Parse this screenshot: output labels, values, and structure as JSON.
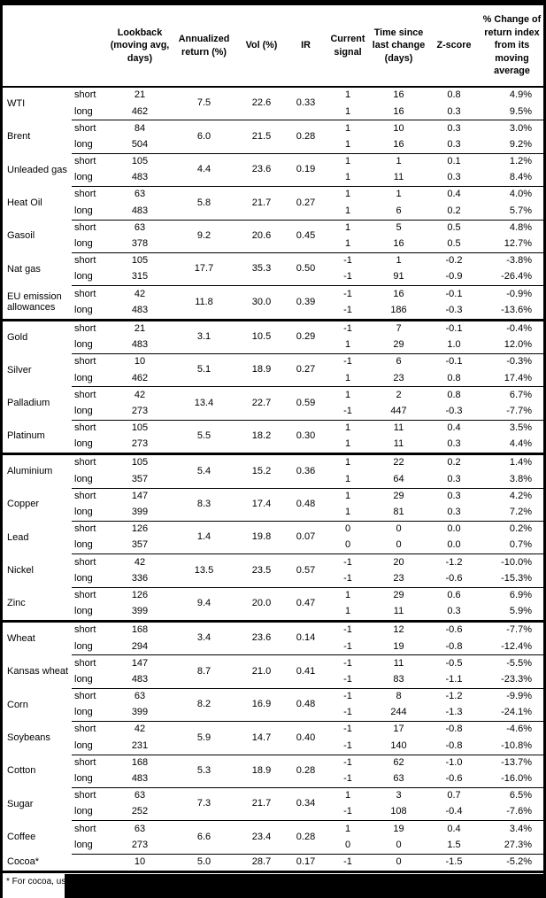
{
  "table": {
    "header": {
      "columns": [
        {
          "label": ""
        },
        {
          "label": ""
        },
        {
          "label": "Lookback (moving avg, days)"
        },
        {
          "label": "Annualized return (%)"
        },
        {
          "label": "Vol (%)"
        },
        {
          "label": "IR"
        },
        {
          "label": "Current signal"
        },
        {
          "label": "Time since last change (days)"
        },
        {
          "label": "Z-score"
        },
        {
          "label": "% Change of return index from its moving average"
        }
      ]
    },
    "sections": [
      {
        "name": "energy",
        "commodities": [
          {
            "name": "WTI",
            "annualized_return": "7.5",
            "vol": "22.6",
            "ir": "0.33",
            "legs": [
              {
                "label": "short",
                "lookback": "21",
                "signal": "1",
                "time_since": "16",
                "z_score": "0.8",
                "pct_change": "4.9%"
              },
              {
                "label": "long",
                "lookback": "462",
                "signal": "1",
                "time_since": "16",
                "z_score": "0.3",
                "pct_change": "9.5%"
              }
            ]
          },
          {
            "name": "Brent",
            "annualized_return": "6.0",
            "vol": "21.5",
            "ir": "0.28",
            "legs": [
              {
                "label": "short",
                "lookback": "84",
                "signal": "1",
                "time_since": "10",
                "z_score": "0.3",
                "pct_change": "3.0%"
              },
              {
                "label": "long",
                "lookback": "504",
                "signal": "1",
                "time_since": "16",
                "z_score": "0.3",
                "pct_change": "9.2%"
              }
            ]
          },
          {
            "name": "Unleaded gas",
            "annualized_return": "4.4",
            "vol": "23.6",
            "ir": "0.19",
            "legs": [
              {
                "label": "short",
                "lookback": "105",
                "signal": "1",
                "time_since": "1",
                "z_score": "0.1",
                "pct_change": "1.2%"
              },
              {
                "label": "long",
                "lookback": "483",
                "signal": "1",
                "time_since": "11",
                "z_score": "0.3",
                "pct_change": "8.4%"
              }
            ]
          },
          {
            "name": "Heat Oil",
            "annualized_return": "5.8",
            "vol": "21.7",
            "ir": "0.27",
            "legs": [
              {
                "label": "short",
                "lookback": "63",
                "signal": "1",
                "time_since": "1",
                "z_score": "0.4",
                "pct_change": "4.0%"
              },
              {
                "label": "long",
                "lookback": "483",
                "signal": "1",
                "time_since": "6",
                "z_score": "0.2",
                "pct_change": "5.7%"
              }
            ]
          },
          {
            "name": "Gasoil",
            "annualized_return": "9.2",
            "vol": "20.6",
            "ir": "0.45",
            "legs": [
              {
                "label": "short",
                "lookback": "63",
                "signal": "1",
                "time_since": "5",
                "z_score": "0.5",
                "pct_change": "4.8%"
              },
              {
                "label": "long",
                "lookback": "378",
                "signal": "1",
                "time_since": "16",
                "z_score": "0.5",
                "pct_change": "12.7%"
              }
            ]
          },
          {
            "name": "Nat gas",
            "annualized_return": "17.7",
            "vol": "35.3",
            "ir": "0.50",
            "legs": [
              {
                "label": "short",
                "lookback": "105",
                "signal": "-1",
                "time_since": "1",
                "z_score": "-0.2",
                "pct_change": "-3.8%"
              },
              {
                "label": "long",
                "lookback": "315",
                "signal": "-1",
                "time_since": "91",
                "z_score": "-0.9",
                "pct_change": "-26.4%"
              }
            ]
          },
          {
            "name": "EU emission allowances",
            "annualized_return": "11.8",
            "vol": "30.0",
            "ir": "0.39",
            "legs": [
              {
                "label": "short",
                "lookback": "42",
                "signal": "-1",
                "time_since": "16",
                "z_score": "-0.1",
                "pct_change": "-0.9%"
              },
              {
                "label": "long",
                "lookback": "483",
                "signal": "-1",
                "time_since": "186",
                "z_score": "-0.3",
                "pct_change": "-13.6%"
              }
            ]
          }
        ]
      },
      {
        "name": "precious-metals",
        "commodities": [
          {
            "name": "Gold",
            "annualized_return": "3.1",
            "vol": "10.5",
            "ir": "0.29",
            "legs": [
              {
                "label": "short",
                "lookback": "21",
                "signal": "-1",
                "time_since": "7",
                "z_score": "-0.1",
                "pct_change": "-0.4%"
              },
              {
                "label": "long",
                "lookback": "483",
                "signal": "1",
                "time_since": "29",
                "z_score": "1.0",
                "pct_change": "12.0%"
              }
            ]
          },
          {
            "name": "Silver",
            "annualized_return": "5.1",
            "vol": "18.9",
            "ir": "0.27",
            "legs": [
              {
                "label": "short",
                "lookback": "10",
                "signal": "-1",
                "time_since": "6",
                "z_score": "-0.1",
                "pct_change": "-0.3%"
              },
              {
                "label": "long",
                "lookback": "462",
                "signal": "1",
                "time_since": "23",
                "z_score": "0.8",
                "pct_change": "17.4%"
              }
            ]
          },
          {
            "name": "Palladium",
            "annualized_return": "13.4",
            "vol": "22.7",
            "ir": "0.59",
            "legs": [
              {
                "label": "short",
                "lookback": "42",
                "signal": "1",
                "time_since": "2",
                "z_score": "0.8",
                "pct_change": "6.7%"
              },
              {
                "label": "long",
                "lookback": "273",
                "signal": "-1",
                "time_since": "447",
                "z_score": "-0.3",
                "pct_change": "-7.7%"
              }
            ]
          },
          {
            "name": "Platinum",
            "annualized_return": "5.5",
            "vol": "18.2",
            "ir": "0.30",
            "legs": [
              {
                "label": "short",
                "lookback": "105",
                "signal": "1",
                "time_since": "11",
                "z_score": "0.4",
                "pct_change": "3.5%"
              },
              {
                "label": "long",
                "lookback": "273",
                "signal": "1",
                "time_since": "11",
                "z_score": "0.3",
                "pct_change": "4.4%"
              }
            ]
          }
        ]
      },
      {
        "name": "base-metals",
        "commodities": [
          {
            "name": "Aluminium",
            "annualized_return": "5.4",
            "vol": "15.2",
            "ir": "0.36",
            "legs": [
              {
                "label": "short",
                "lookback": "105",
                "signal": "1",
                "time_since": "22",
                "z_score": "0.2",
                "pct_change": "1.4%"
              },
              {
                "label": "long",
                "lookback": "357",
                "signal": "1",
                "time_since": "64",
                "z_score": "0.3",
                "pct_change": "3.8%"
              }
            ]
          },
          {
            "name": "Copper",
            "annualized_return": "8.3",
            "vol": "17.4",
            "ir": "0.48",
            "legs": [
              {
                "label": "short",
                "lookback": "147",
                "signal": "1",
                "time_since": "29",
                "z_score": "0.3",
                "pct_change": "4.2%"
              },
              {
                "label": "long",
                "lookback": "399",
                "signal": "1",
                "time_since": "81",
                "z_score": "0.3",
                "pct_change": "7.2%"
              }
            ]
          },
          {
            "name": "Lead",
            "annualized_return": "1.4",
            "vol": "19.8",
            "ir": "0.07",
            "legs": [
              {
                "label": "short",
                "lookback": "126",
                "signal": "0",
                "time_since": "0",
                "z_score": "0.0",
                "pct_change": "0.2%"
              },
              {
                "label": "long",
                "lookback": "357",
                "signal": "0",
                "time_since": "0",
                "z_score": "0.0",
                "pct_change": "0.7%"
              }
            ]
          },
          {
            "name": "Nickel",
            "annualized_return": "13.5",
            "vol": "23.5",
            "ir": "0.57",
            "legs": [
              {
                "label": "short",
                "lookback": "42",
                "signal": "-1",
                "time_since": "20",
                "z_score": "-1.2",
                "pct_change": "-10.0%"
              },
              {
                "label": "long",
                "lookback": "336",
                "signal": "-1",
                "time_since": "23",
                "z_score": "-0.6",
                "pct_change": "-15.3%"
              }
            ]
          },
          {
            "name": "Zinc",
            "annualized_return": "9.4",
            "vol": "20.0",
            "ir": "0.47",
            "legs": [
              {
                "label": "short",
                "lookback": "126",
                "signal": "1",
                "time_since": "29",
                "z_score": "0.6",
                "pct_change": "6.9%"
              },
              {
                "label": "long",
                "lookback": "399",
                "signal": "1",
                "time_since": "11",
                "z_score": "0.3",
                "pct_change": "5.9%"
              }
            ]
          }
        ]
      },
      {
        "name": "agriculture",
        "commodities": [
          {
            "name": "Wheat",
            "annualized_return": "3.4",
            "vol": "23.6",
            "ir": "0.14",
            "legs": [
              {
                "label": "short",
                "lookback": "168",
                "signal": "-1",
                "time_since": "12",
                "z_score": "-0.6",
                "pct_change": "-7.7%"
              },
              {
                "label": "long",
                "lookback": "294",
                "signal": "-1",
                "time_since": "19",
                "z_score": "-0.8",
                "pct_change": "-12.4%"
              }
            ]
          },
          {
            "name": "Kansas wheat",
            "annualized_return": "8.7",
            "vol": "21.0",
            "ir": "0.41",
            "legs": [
              {
                "label": "short",
                "lookback": "147",
                "signal": "-1",
                "time_since": "11",
                "z_score": "-0.5",
                "pct_change": "-5.5%"
              },
              {
                "label": "long",
                "lookback": "483",
                "signal": "-1",
                "time_since": "83",
                "z_score": "-1.1",
                "pct_change": "-23.3%"
              }
            ]
          },
          {
            "name": "Corn",
            "annualized_return": "8.2",
            "vol": "16.9",
            "ir": "0.48",
            "legs": [
              {
                "label": "short",
                "lookback": "63",
                "signal": "-1",
                "time_since": "8",
                "z_score": "-1.2",
                "pct_change": "-9.9%"
              },
              {
                "label": "long",
                "lookback": "399",
                "signal": "-1",
                "time_since": "244",
                "z_score": "-1.3",
                "pct_change": "-24.1%"
              }
            ]
          },
          {
            "name": "Soybeans",
            "annualized_return": "5.9",
            "vol": "14.7",
            "ir": "0.40",
            "legs": [
              {
                "label": "short",
                "lookback": "42",
                "signal": "-1",
                "time_since": "17",
                "z_score": "-0.8",
                "pct_change": "-4.6%"
              },
              {
                "label": "long",
                "lookback": "231",
                "signal": "-1",
                "time_since": "140",
                "z_score": "-0.8",
                "pct_change": "-10.8%"
              }
            ]
          },
          {
            "name": "Cotton",
            "annualized_return": "5.3",
            "vol": "18.9",
            "ir": "0.28",
            "legs": [
              {
                "label": "short",
                "lookback": "168",
                "signal": "-1",
                "time_since": "62",
                "z_score": "-1.0",
                "pct_change": "-13.7%"
              },
              {
                "label": "long",
                "lookback": "483",
                "signal": "-1",
                "time_since": "63",
                "z_score": "-0.6",
                "pct_change": "-16.0%"
              }
            ]
          },
          {
            "name": "Sugar",
            "annualized_return": "7.3",
            "vol": "21.7",
            "ir": "0.34",
            "legs": [
              {
                "label": "short",
                "lookback": "63",
                "signal": "1",
                "time_since": "3",
                "z_score": "0.7",
                "pct_change": "6.5%"
              },
              {
                "label": "long",
                "lookback": "252",
                "signal": "-1",
                "time_since": "108",
                "z_score": "-0.4",
                "pct_change": "-7.6%"
              }
            ]
          },
          {
            "name": "Coffee",
            "annualized_return": "6.6",
            "vol": "23.4",
            "ir": "0.28",
            "legs": [
              {
                "label": "short",
                "lookback": "63",
                "signal": "1",
                "time_since": "19",
                "z_score": "0.4",
                "pct_change": "3.4%"
              },
              {
                "label": "long",
                "lookback": "273",
                "signal": "0",
                "time_since": "0",
                "z_score": "1.5",
                "pct_change": "27.3%"
              }
            ]
          },
          {
            "name": "Cocoa*",
            "annualized_return": "5.0",
            "vol": "28.7",
            "ir": "0.17",
            "legs": [
              {
                "label": "",
                "lookback": "10",
                "signal": "-1",
                "time_since": "0",
                "z_score": "-1.5",
                "pct_change": "-5.2%"
              }
            ]
          }
        ]
      }
    ]
  },
  "footnote": {
    "visible_text": "* For cocoa, uses c",
    "redacted": true
  }
}
